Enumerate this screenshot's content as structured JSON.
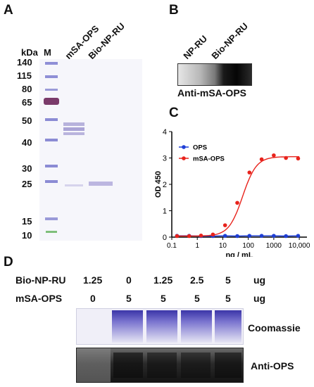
{
  "panels": {
    "A": {
      "letter": "A",
      "unit_label": "kDa",
      "marker_label": "M",
      "lanes": [
        "mSA-OPS",
        "Bio-NP-RU"
      ],
      "markers": [
        "140",
        "115",
        "80",
        "65",
        "50",
        "40",
        "30",
        "25",
        "15",
        "10"
      ]
    },
    "B": {
      "letter": "B",
      "lanes": [
        "NP-RU",
        "Bio-NP-RU"
      ],
      "caption": "Anti-mSA-OPS"
    },
    "C": {
      "letter": "C"
    },
    "D": {
      "letter": "D",
      "rows": [
        {
          "label": "Bio-NP-RU",
          "values": [
            "1.25",
            "0",
            "1.25",
            "2.5",
            "5"
          ],
          "unit": "ug"
        },
        {
          "label": "mSA-OPS",
          "values": [
            "0",
            "5",
            "5",
            "5",
            "5"
          ],
          "unit": "ug"
        }
      ],
      "blots": [
        "Coomassie",
        "Anti-OPS"
      ]
    }
  },
  "chart_data": {
    "type": "scatter",
    "title": "",
    "xlabel": "ng / mL",
    "ylabel": "OD 450",
    "xscale": "log",
    "xlim": [
      0.1,
      20000
    ],
    "ylim": [
      0,
      4
    ],
    "x_ticks": [
      "0.1",
      "1",
      "10",
      "100",
      "1000",
      "10,000"
    ],
    "y_ticks": [
      "0",
      "1",
      "2",
      "3",
      "4"
    ],
    "legend_position": "top-left",
    "series": [
      {
        "name": "OPS",
        "color": "#1f3fd6",
        "x": [
          0.16,
          0.48,
          1.4,
          4.1,
          12.3,
          37,
          111,
          333,
          1000,
          3000,
          9000
        ],
        "y": [
          0.05,
          0.05,
          0.04,
          0.04,
          0.05,
          0.04,
          0.05,
          0.05,
          0.05,
          0.04,
          0.05
        ]
      },
      {
        "name": "mSA-OPS",
        "color": "#e8231c",
        "x": [
          0.16,
          0.48,
          1.4,
          4.1,
          12.3,
          37,
          111,
          333,
          1000,
          3000,
          9000
        ],
        "y": [
          0.04,
          0.04,
          0.06,
          0.1,
          0.45,
          1.3,
          2.45,
          2.95,
          3.1,
          3.0,
          2.98
        ]
      }
    ]
  }
}
